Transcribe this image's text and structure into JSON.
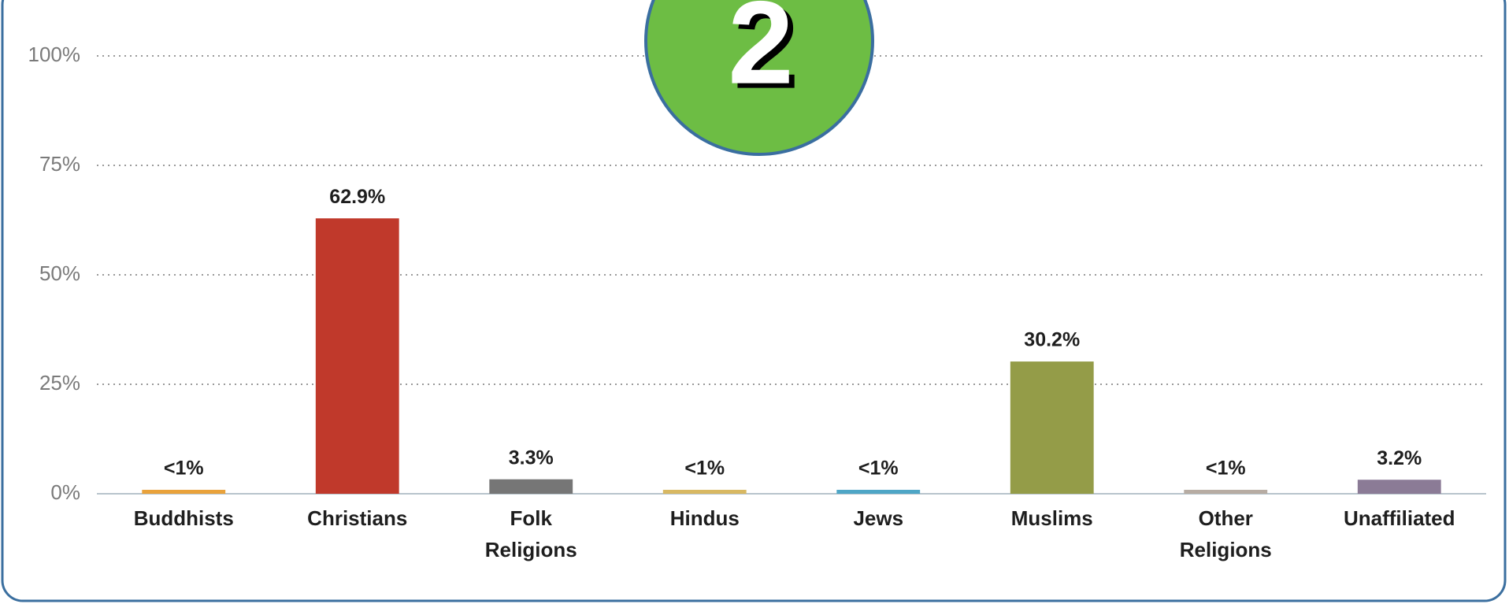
{
  "chart_data": {
    "type": "bar",
    "badge": "2",
    "categories": [
      "Buddhists",
      "Christians",
      "Folk Religions",
      "Hindus",
      "Jews",
      "Muslims",
      "Other Religions",
      "Unaffiliated"
    ],
    "values": [
      0.9,
      62.9,
      3.3,
      0.9,
      0.9,
      30.2,
      0.9,
      3.2
    ],
    "value_labels": [
      "<1%",
      "62.9%",
      "3.3%",
      "<1%",
      "<1%",
      "30.2%",
      "<1%",
      "3.2%"
    ],
    "colors": [
      "#e9a23b",
      "#c0392b",
      "#767676",
      "#d8b862",
      "#4ea6c6",
      "#949c48",
      "#b7aca3",
      "#8b7b96"
    ],
    "ylim": [
      0,
      100
    ],
    "yticks": [
      {
        "value": 0,
        "label": "0%"
      },
      {
        "value": 25,
        "label": "25%"
      },
      {
        "value": 50,
        "label": "50%"
      },
      {
        "value": 75,
        "label": "75%"
      },
      {
        "value": 100,
        "label": "100%"
      }
    ],
    "grid": true
  }
}
